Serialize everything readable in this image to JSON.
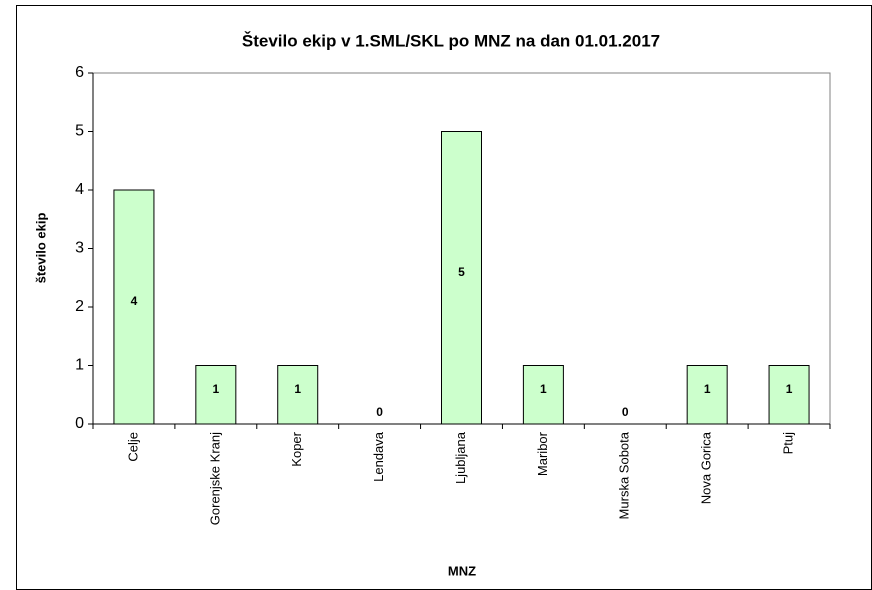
{
  "chart_data": {
    "type": "bar",
    "title": "Število ekip v 1.SML/SKL po MNZ na dan 01.01.2017",
    "x_label": "MNZ",
    "y_label": "število ekip",
    "categories": [
      "Celje",
      "Gorenjske Kranj",
      "Koper",
      "Lendava",
      "Ljubljana",
      "Maribor",
      "Murska Sobota",
      "Nova Gorica",
      "Ptuj"
    ],
    "values": [
      4,
      1,
      1,
      0,
      5,
      1,
      0,
      1,
      1
    ],
    "color": "#ccffcc",
    "ylim": [
      0,
      6
    ],
    "yticks": [
      0,
      1,
      2,
      3,
      4,
      5,
      6
    ],
    "grid": false
  }
}
